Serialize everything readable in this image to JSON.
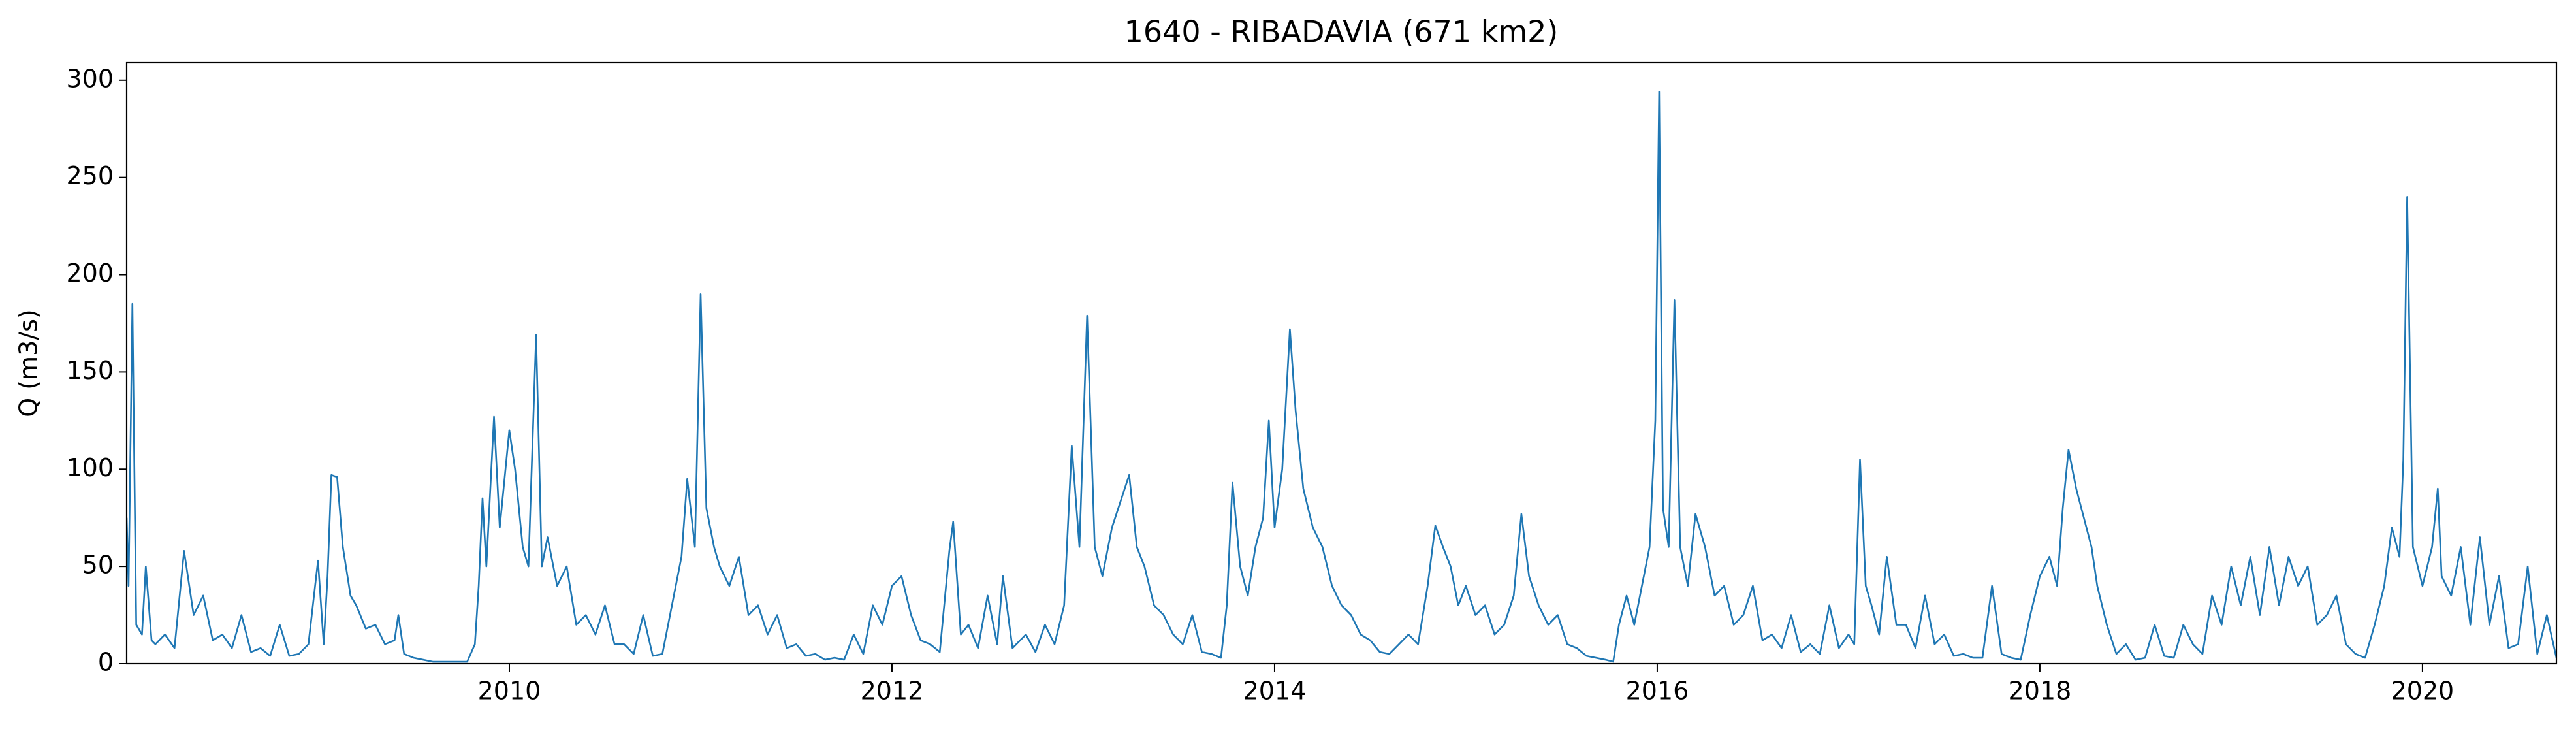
{
  "chart_data": {
    "type": "line",
    "title": "1640 - RIBADAVIA (671 km2)",
    "ylabel": "Q (m3/s)",
    "xlim": [
      2008.0,
      2020.7
    ],
    "xticks": [
      2010,
      2012,
      2014,
      2016,
      2018,
      2020
    ],
    "ylim": [
      0,
      309
    ],
    "yticks": [
      0,
      50,
      100,
      150,
      200,
      250,
      300
    ],
    "grid": false,
    "series": [
      {
        "name": "Q",
        "color": "#1f77b4",
        "x": [
          2008.0,
          2008.01,
          2008.03,
          2008.05,
          2008.08,
          2008.1,
          2008.13,
          2008.15,
          2008.2,
          2008.25,
          2008.3,
          2008.35,
          2008.4,
          2008.45,
          2008.5,
          2008.55,
          2008.6,
          2008.65,
          2008.7,
          2008.75,
          2008.8,
          2008.85,
          2008.9,
          2008.95,
          2009.0,
          2009.03,
          2009.05,
          2009.07,
          2009.1,
          2009.13,
          2009.17,
          2009.2,
          2009.25,
          2009.3,
          2009.35,
          2009.4,
          2009.42,
          2009.45,
          2009.5,
          2009.55,
          2009.6,
          2009.7,
          2009.78,
          2009.82,
          2009.84,
          2009.86,
          2009.88,
          2009.92,
          2009.95,
          2010.0,
          2010.03,
          2010.07,
          2010.1,
          2010.14,
          2010.17,
          2010.2,
          2010.25,
          2010.3,
          2010.35,
          2010.4,
          2010.45,
          2010.5,
          2010.55,
          2010.6,
          2010.65,
          2010.7,
          2010.75,
          2010.8,
          2010.85,
          2010.9,
          2010.93,
          2010.97,
          2011.0,
          2011.03,
          2011.07,
          2011.1,
          2011.15,
          2011.2,
          2011.25,
          2011.3,
          2011.35,
          2011.4,
          2011.45,
          2011.5,
          2011.55,
          2011.6,
          2011.65,
          2011.7,
          2011.75,
          2011.8,
          2011.85,
          2011.9,
          2011.95,
          2012.0,
          2012.05,
          2012.1,
          2012.15,
          2012.2,
          2012.25,
          2012.3,
          2012.32,
          2012.36,
          2012.4,
          2012.45,
          2012.5,
          2012.55,
          2012.58,
          2012.63,
          2012.7,
          2012.75,
          2012.8,
          2012.85,
          2012.9,
          2012.94,
          2012.98,
          2013.02,
          2013.06,
          2013.1,
          2013.15,
          2013.2,
          2013.24,
          2013.28,
          2013.32,
          2013.37,
          2013.42,
          2013.47,
          2013.52,
          2013.57,
          2013.62,
          2013.67,
          2013.72,
          2013.75,
          2013.78,
          2013.82,
          2013.86,
          2013.9,
          2013.94,
          2013.97,
          2014.0,
          2014.04,
          2014.08,
          2014.11,
          2014.15,
          2014.2,
          2014.25,
          2014.3,
          2014.35,
          2014.4,
          2014.45,
          2014.5,
          2014.55,
          2014.6,
          2014.65,
          2014.7,
          2014.75,
          2014.8,
          2014.84,
          2014.88,
          2014.92,
          2014.96,
          2015.0,
          2015.05,
          2015.1,
          2015.15,
          2015.2,
          2015.25,
          2015.29,
          2015.33,
          2015.38,
          2015.43,
          2015.48,
          2015.53,
          2015.58,
          2015.63,
          2015.68,
          2015.73,
          2015.77,
          2015.8,
          2015.84,
          2015.88,
          2015.92,
          2015.96,
          2015.99,
          2016.01,
          2016.03,
          2016.06,
          2016.09,
          2016.12,
          2016.16,
          2016.2,
          2016.25,
          2016.3,
          2016.35,
          2016.4,
          2016.45,
          2016.5,
          2016.55,
          2016.6,
          2016.65,
          2016.7,
          2016.75,
          2016.8,
          2016.85,
          2016.9,
          2016.95,
          2017.0,
          2017.03,
          2017.06,
          2017.09,
          2017.12,
          2017.16,
          2017.2,
          2017.25,
          2017.3,
          2017.35,
          2017.4,
          2017.45,
          2017.5,
          2017.55,
          2017.6,
          2017.65,
          2017.7,
          2017.75,
          2017.8,
          2017.85,
          2017.9,
          2017.95,
          2018.0,
          2018.05,
          2018.09,
          2018.12,
          2018.15,
          2018.19,
          2018.23,
          2018.27,
          2018.3,
          2018.35,
          2018.4,
          2018.45,
          2018.5,
          2018.55,
          2018.6,
          2018.65,
          2018.7,
          2018.75,
          2018.8,
          2018.85,
          2018.9,
          2018.95,
          2019.0,
          2019.05,
          2019.1,
          2019.15,
          2019.2,
          2019.25,
          2019.3,
          2019.35,
          2019.4,
          2019.45,
          2019.5,
          2019.55,
          2019.6,
          2019.65,
          2019.7,
          2019.75,
          2019.8,
          2019.84,
          2019.88,
          2019.9,
          2019.92,
          2019.95,
          2020.0,
          2020.05,
          2020.08,
          2020.1,
          2020.15,
          2020.2,
          2020.25,
          2020.3,
          2020.35,
          2020.4,
          2020.45,
          2020.5,
          2020.55,
          2020.6,
          2020.65,
          2020.7
        ],
        "values": [
          75,
          40,
          185,
          20,
          15,
          50,
          12,
          10,
          15,
          8,
          58,
          25,
          35,
          12,
          15,
          8,
          25,
          6,
          8,
          4,
          20,
          4,
          5,
          10,
          53,
          10,
          45,
          97,
          96,
          60,
          35,
          30,
          18,
          20,
          10,
          12,
          25,
          5,
          3,
          2,
          1,
          1,
          1,
          10,
          40,
          85,
          50,
          127,
          70,
          120,
          100,
          60,
          50,
          169,
          50,
          65,
          40,
          50,
          20,
          25,
          15,
          30,
          10,
          10,
          5,
          25,
          4,
          5,
          30,
          55,
          95,
          60,
          190,
          80,
          60,
          50,
          40,
          55,
          25,
          30,
          15,
          25,
          8,
          10,
          4,
          5,
          2,
          3,
          2,
          15,
          5,
          30,
          20,
          40,
          45,
          25,
          12,
          10,
          6,
          58,
          73,
          15,
          20,
          8,
          35,
          10,
          45,
          8,
          15,
          6,
          20,
          10,
          30,
          112,
          60,
          179,
          60,
          45,
          70,
          85,
          97,
          60,
          50,
          30,
          25,
          15,
          10,
          25,
          6,
          5,
          3,
          30,
          93,
          50,
          35,
          60,
          75,
          125,
          70,
          100,
          172,
          130,
          90,
          70,
          60,
          40,
          30,
          25,
          15,
          12,
          6,
          5,
          10,
          15,
          10,
          40,
          71,
          60,
          50,
          30,
          40,
          25,
          30,
          15,
          20,
          35,
          77,
          45,
          30,
          20,
          25,
          10,
          8,
          4,
          3,
          2,
          1,
          20,
          35,
          20,
          40,
          60,
          125,
          294,
          80,
          60,
          187,
          60,
          40,
          77,
          60,
          35,
          40,
          20,
          25,
          40,
          12,
          15,
          8,
          25,
          6,
          10,
          5,
          30,
          8,
          15,
          10,
          105,
          40,
          30,
          15,
          55,
          20,
          20,
          8,
          35,
          10,
          15,
          4,
          5,
          3,
          3,
          40,
          5,
          3,
          2,
          25,
          45,
          55,
          40,
          80,
          110,
          90,
          75,
          60,
          40,
          20,
          5,
          10,
          2,
          3,
          20,
          4,
          3,
          20,
          10,
          5,
          35,
          20,
          50,
          30,
          55,
          25,
          60,
          30,
          55,
          40,
          50,
          20,
          25,
          35,
          10,
          5,
          3,
          20,
          40,
          70,
          55,
          105,
          240,
          60,
          40,
          60,
          90,
          45,
          35,
          60,
          20,
          65,
          20,
          45,
          8,
          10,
          50,
          5,
          25,
          3
        ]
      }
    ]
  }
}
